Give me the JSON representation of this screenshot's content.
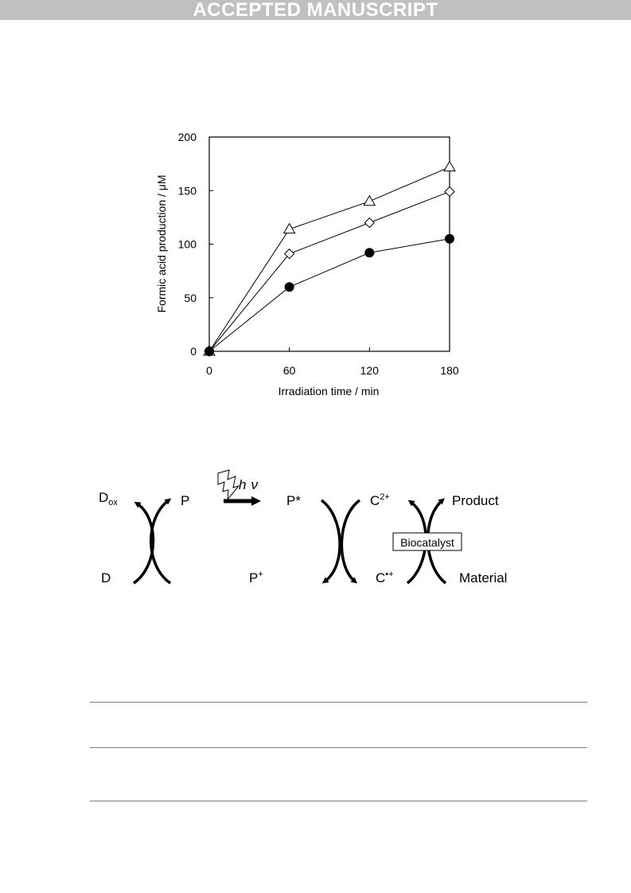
{
  "header": {
    "banner": "ACCEPTED MANUSCRIPT"
  },
  "chart_data": {
    "type": "line",
    "xlabel": "Irradiation time / min",
    "ylabel": "Formic acid production / μM",
    "x": [
      0,
      60,
      120,
      180
    ],
    "xticks": [
      "0",
      "60",
      "120",
      "180"
    ],
    "yticks": [
      "0",
      "50",
      "100",
      "150",
      "200"
    ],
    "xlim": [
      0,
      180
    ],
    "ylim": [
      0,
      200
    ],
    "grid": false,
    "series": [
      {
        "marker": "triangle-open",
        "values": [
          0,
          114,
          140,
          172
        ]
      },
      {
        "marker": "diamond-open",
        "values": [
          0,
          91,
          120,
          149
        ]
      },
      {
        "marker": "circle-filled",
        "values": [
          0,
          60,
          92,
          105
        ]
      }
    ]
  },
  "scheme": {
    "d_ox_base": "D",
    "d_ox_sub": "ox",
    "p": "P",
    "hv_h": "h",
    "hv_v": "ν",
    "p_star": "P*",
    "c2_base": "C",
    "c2_sup": "2+",
    "product": "Product",
    "biocatalyst": "Biocatalyst",
    "d": "D",
    "p_plus_base": "P",
    "p_plus_sup": "+",
    "c_rad_base": "C",
    "c_rad_sup": "•+",
    "material": "Material"
  },
  "table": {
    "rows": []
  }
}
